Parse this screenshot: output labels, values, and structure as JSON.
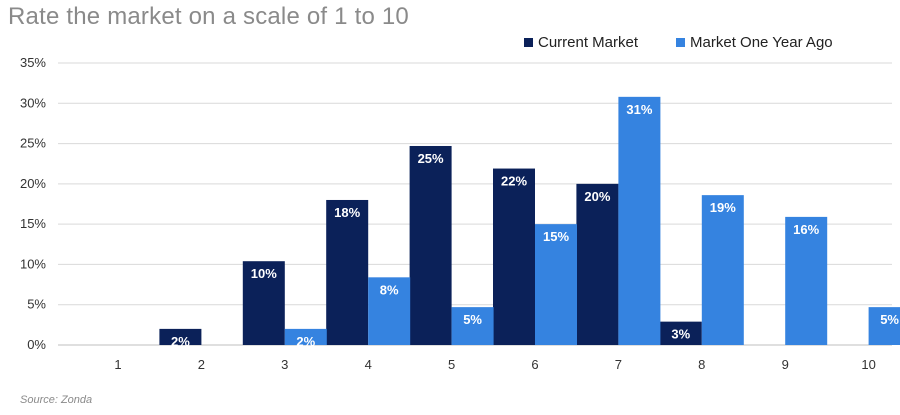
{
  "page": {
    "title": "Rate the market on a scale of 1 to 10",
    "source": "Source: Zonda"
  },
  "colors": {
    "current": "#0b2159",
    "year_ago": "#3583e0",
    "grid": "#d9d9d9",
    "axis": "#bfbfbf"
  },
  "chart_data": {
    "type": "bar",
    "title": "Rate the market on a scale of 1 to 10",
    "xlabel": "",
    "ylabel": "",
    "categories": [
      "1",
      "2",
      "3",
      "4",
      "5",
      "6",
      "7",
      "8",
      "9",
      "10"
    ],
    "ylim": [
      0,
      35
    ],
    "yticks": [
      "0%",
      "5%",
      "10%",
      "15%",
      "20%",
      "25%",
      "30%",
      "35%"
    ],
    "grid": true,
    "legend_position": "top-right",
    "series": [
      {
        "name": "Current Market",
        "values": [
          0,
          2,
          10.4,
          18,
          24.7,
          21.9,
          20,
          2.9,
          0,
          0
        ],
        "labels": [
          "",
          "2%",
          "10%",
          "18%",
          "25%",
          "22%",
          "20%",
          "3%",
          "",
          ""
        ]
      },
      {
        "name": "Market One Year Ago",
        "values": [
          0,
          0,
          2,
          8.4,
          4.7,
          15,
          30.8,
          18.6,
          15.9,
          4.7
        ],
        "labels": [
          "",
          "",
          "2%",
          "8%",
          "5%",
          "15%",
          "31%",
          "19%",
          "16%",
          "5%"
        ]
      }
    ]
  }
}
